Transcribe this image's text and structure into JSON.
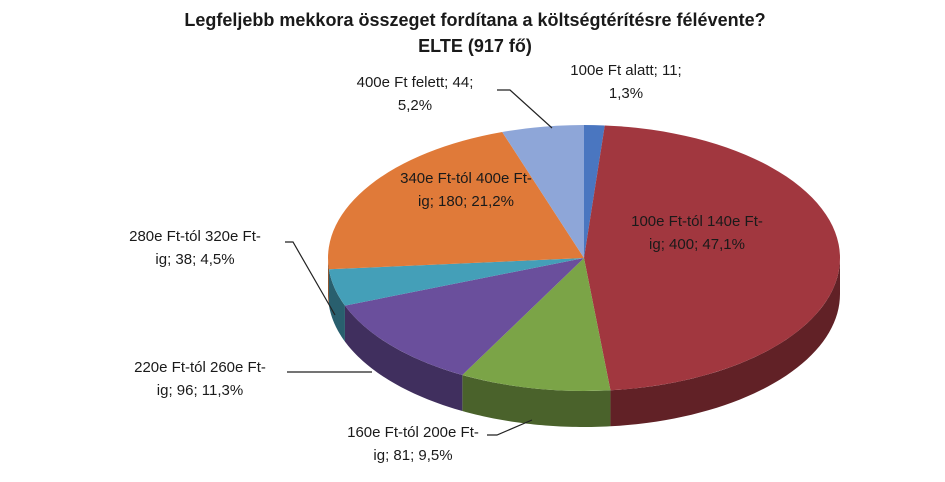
{
  "chart_data": {
    "type": "pie3d",
    "title": "Legfeljebb mekkora összeget fordítana a költségtérítésre félévente?",
    "subtitle": "ELTE (917 fő)",
    "categories": [
      "100e Ft alatt",
      "100e Ft-tól 140e Ft-ig",
      "160e Ft-tól 200e Ft-ig",
      "220e Ft-tól 260e Ft-ig",
      "280e Ft-tól 320e Ft-ig",
      "340e Ft-tól 400e Ft-ig",
      "400e Ft felett"
    ],
    "values": [
      11,
      400,
      81,
      96,
      38,
      180,
      44
    ],
    "value_labels": [
      "100e Ft alatt; 11; 1,3%",
      "100e Ft-tól 140e Ft-ig; 400; 47,1%",
      "160e Ft-tól 200e Ft-ig; 81; 9,5%",
      "220e Ft-tól 260e Ft-ig; 96; 11,3%",
      "280e Ft-tól 320e Ft-ig; 38; 4,5%",
      "340e Ft-tól 400e Ft-ig; 180; 21,2%",
      "400e Ft felett; 44; 5,2%"
    ],
    "colors": [
      "#4a76c0",
      "#a1373f",
      "#7ba447",
      "#6a4f9c",
      "#449fb8",
      "#e07a39",
      "#8ea6d8"
    ]
  }
}
